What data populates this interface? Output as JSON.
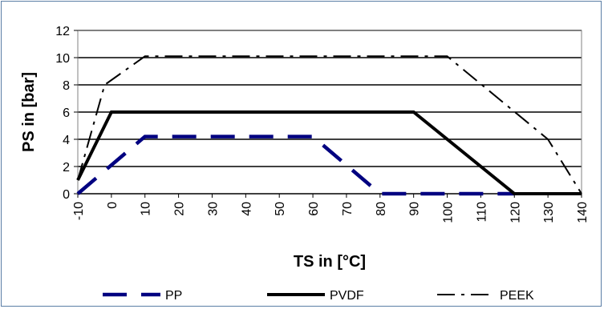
{
  "chart_data": {
    "type": "line",
    "xlabel": "TS in [°C]",
    "ylabel": "PS in [bar]",
    "xlim": [
      -10,
      140
    ],
    "ylim": [
      0,
      12
    ],
    "x_ticks": [
      "-10",
      "0",
      "10",
      "20",
      "30",
      "40",
      "50",
      "60",
      "70",
      "80",
      "90",
      "100",
      "110",
      "120",
      "130",
      "140"
    ],
    "y_ticks": [
      "0",
      "2",
      "4",
      "6",
      "8",
      "10",
      "12"
    ],
    "grid": "horizontal",
    "legend_position": "bottom",
    "series": [
      {
        "name": "PP",
        "color": "#000080",
        "style": "long-dash",
        "points": [
          [
            -10,
            0
          ],
          [
            10,
            4.2
          ],
          [
            60,
            4.2
          ],
          [
            80,
            0
          ],
          [
            120,
            0
          ]
        ]
      },
      {
        "name": "PVDF",
        "color": "#000000",
        "style": "solid",
        "points": [
          [
            -10,
            1
          ],
          [
            0,
            6
          ],
          [
            90,
            6
          ],
          [
            120,
            0
          ],
          [
            140,
            0
          ]
        ]
      },
      {
        "name": "PEEK",
        "color": "#000000",
        "style": "dash-dot",
        "points": [
          [
            -10,
            1
          ],
          [
            -2,
            8
          ],
          [
            10,
            10.1
          ],
          [
            100,
            10.1
          ],
          [
            130,
            4
          ],
          [
            140,
            0
          ]
        ]
      }
    ]
  }
}
